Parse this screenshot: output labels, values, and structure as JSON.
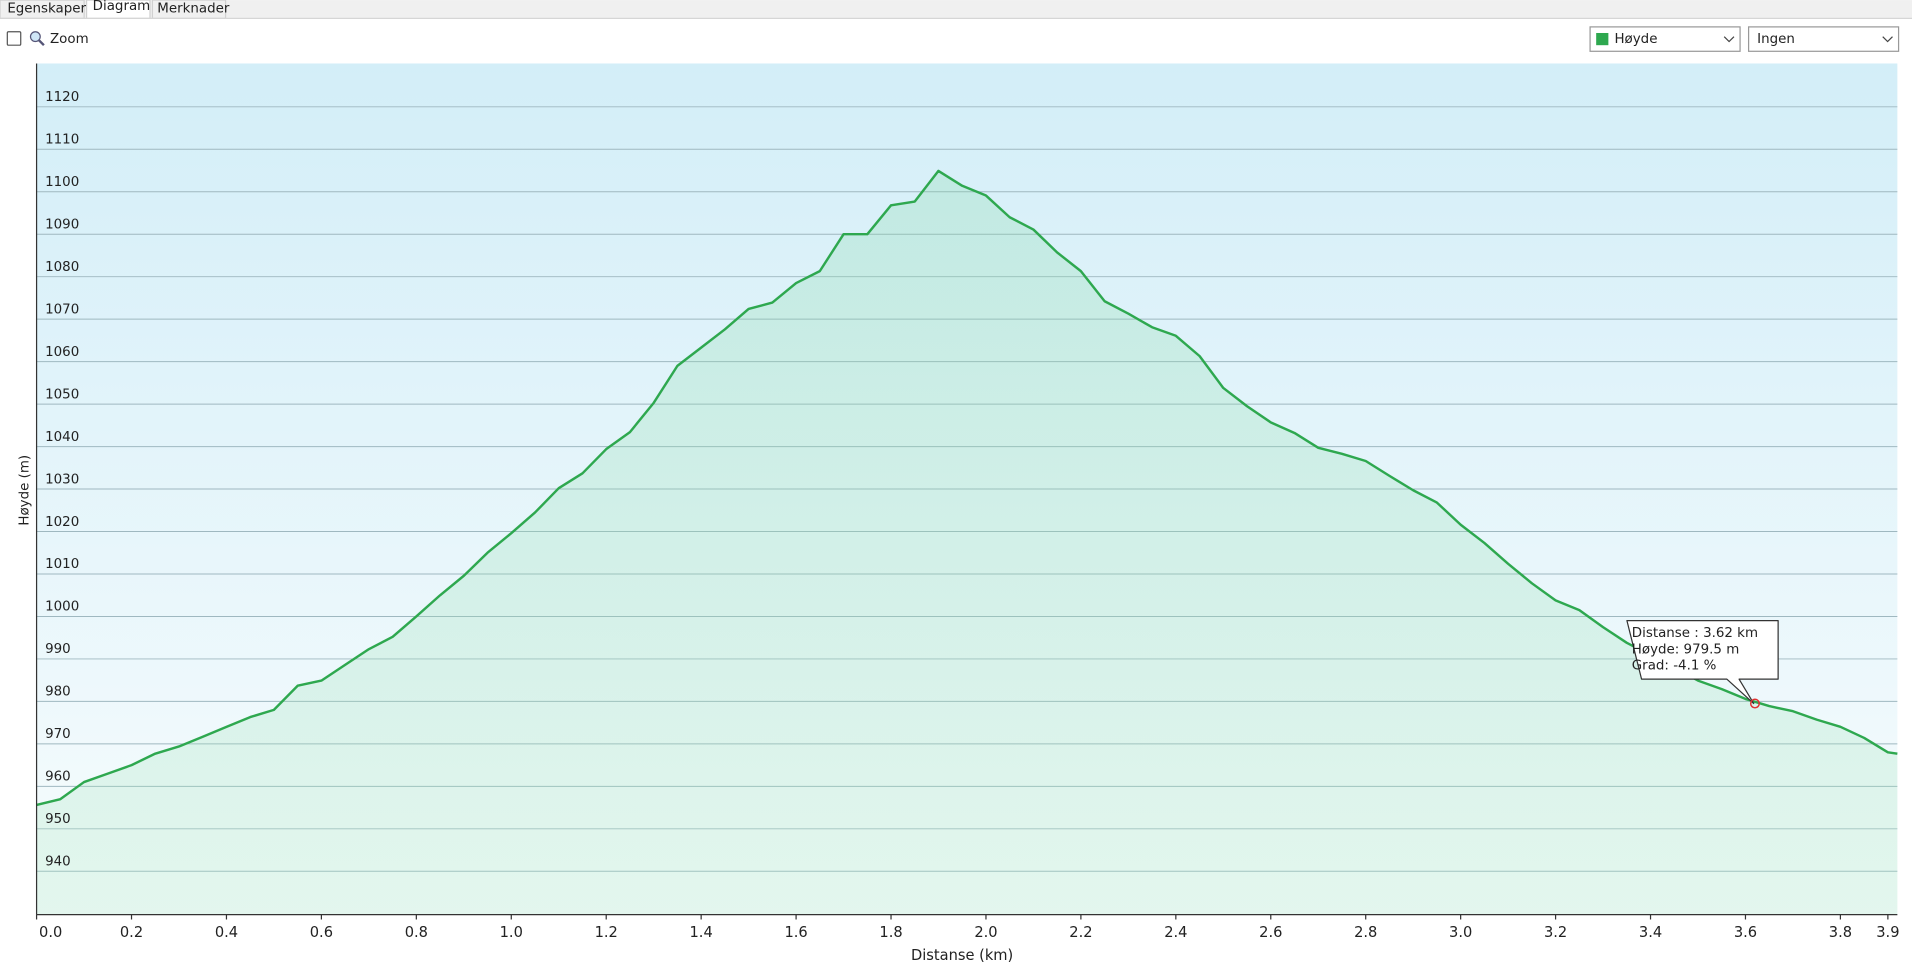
{
  "tabs": [
    "Egenskaper",
    "Diagram",
    "Merknader"
  ],
  "toolbar": {
    "zoom": "Zoom",
    "dropdown_1": "Høyde",
    "dropdown_2": "Ingen"
  },
  "chart_data": {
    "type": "area",
    "x_label": "Distanse  (km)",
    "y_label": "Høyde (m)",
    "x": [
      0,
      0.05,
      0.1,
      0.15,
      0.2,
      0.25,
      0.3,
      0.35,
      0.4,
      0.45,
      0.5,
      0.55,
      0.6,
      0.65,
      0.7,
      0.75,
      0.8,
      0.85,
      0.9,
      0.95,
      1.0,
      1.05,
      1.1,
      1.15,
      1.2,
      1.25,
      1.3,
      1.35,
      1.4,
      1.45,
      1.5,
      1.55,
      1.6,
      1.65,
      1.7,
      1.75,
      1.8,
      1.85,
      1.9,
      1.95,
      2.0,
      2.05,
      2.1,
      2.15,
      2.2,
      2.25,
      2.3,
      2.35,
      2.4,
      2.45,
      2.5,
      2.55,
      2.6,
      2.65,
      2.7,
      2.75,
      2.8,
      2.85,
      2.9,
      2.95,
      3.0,
      3.05,
      3.1,
      3.15,
      3.2,
      3.25,
      3.3,
      3.35,
      3.4,
      3.45,
      3.5,
      3.55,
      3.6,
      3.65,
      3.7,
      3.75,
      3.8,
      3.85,
      3.9,
      3.92
    ],
    "series": [
      {
        "name": "Høyde",
        "color": "#2ea84f",
        "values": [
          955.6,
          957,
          961,
          963,
          965,
          967.7,
          969.4,
          971.7,
          974,
          976.3,
          978,
          983.7,
          984.9,
          988.6,
          992.3,
          995.2,
          1000,
          1005,
          1009.6,
          1015,
          1019.6,
          1024.5,
          1030.2,
          1033.7,
          1039.4,
          1043.4,
          1050.3,
          1059,
          1063.3,
          1067.6,
          1072.4,
          1073.9,
          1078.5,
          1081.3,
          1090,
          1090,
          1096.8,
          1097.7,
          1104.9,
          1101.4,
          1099.1,
          1094,
          1091.1,
          1085.7,
          1081.3,
          1074.2,
          1071.3,
          1068.1,
          1066.1,
          1061.3,
          1053.8,
          1049.5,
          1045.7,
          1043.2,
          1039.7,
          1038.3,
          1036.6,
          1033.1,
          1029.7,
          1026.8,
          1021.6,
          1017.3,
          1012.4,
          1007.8,
          1003.8,
          1001.5,
          997.5,
          993.8,
          990.9,
          988,
          984.9,
          982.9,
          980.6,
          978.9,
          977.7,
          975.7,
          974,
          971.4,
          968,
          967.7
        ]
      }
    ],
    "xlim": [
      0,
      3.92
    ],
    "ylim": [
      929.8,
      1130.2
    ],
    "xticks": [
      {
        "value": 0,
        "label": "0.0"
      },
      0.2,
      0.4,
      0.6,
      0.8,
      {
        "value": 1,
        "label": "1.0"
      },
      1.2,
      1.4,
      1.6,
      1.8,
      {
        "value": 2,
        "label": "2.0"
      },
      2.2,
      2.4,
      2.6,
      2.8,
      {
        "value": 3,
        "label": "3.0"
      },
      3.2,
      3.4,
      3.6,
      3.8,
      3.9
    ],
    "yticks": [
      940,
      950,
      960,
      970,
      980,
      990,
      1000,
      1010,
      1020,
      1030,
      1040,
      1050,
      1060,
      1070,
      1080,
      1090,
      1100,
      1110,
      1120
    ],
    "grid": true,
    "marker": {
      "x": 3.62,
      "y": 979.5
    },
    "tooltip": [
      "Distanse : 3.62 km",
      "Høyde: 979.5 m",
      "Grad: -4.1 %"
    ]
  }
}
